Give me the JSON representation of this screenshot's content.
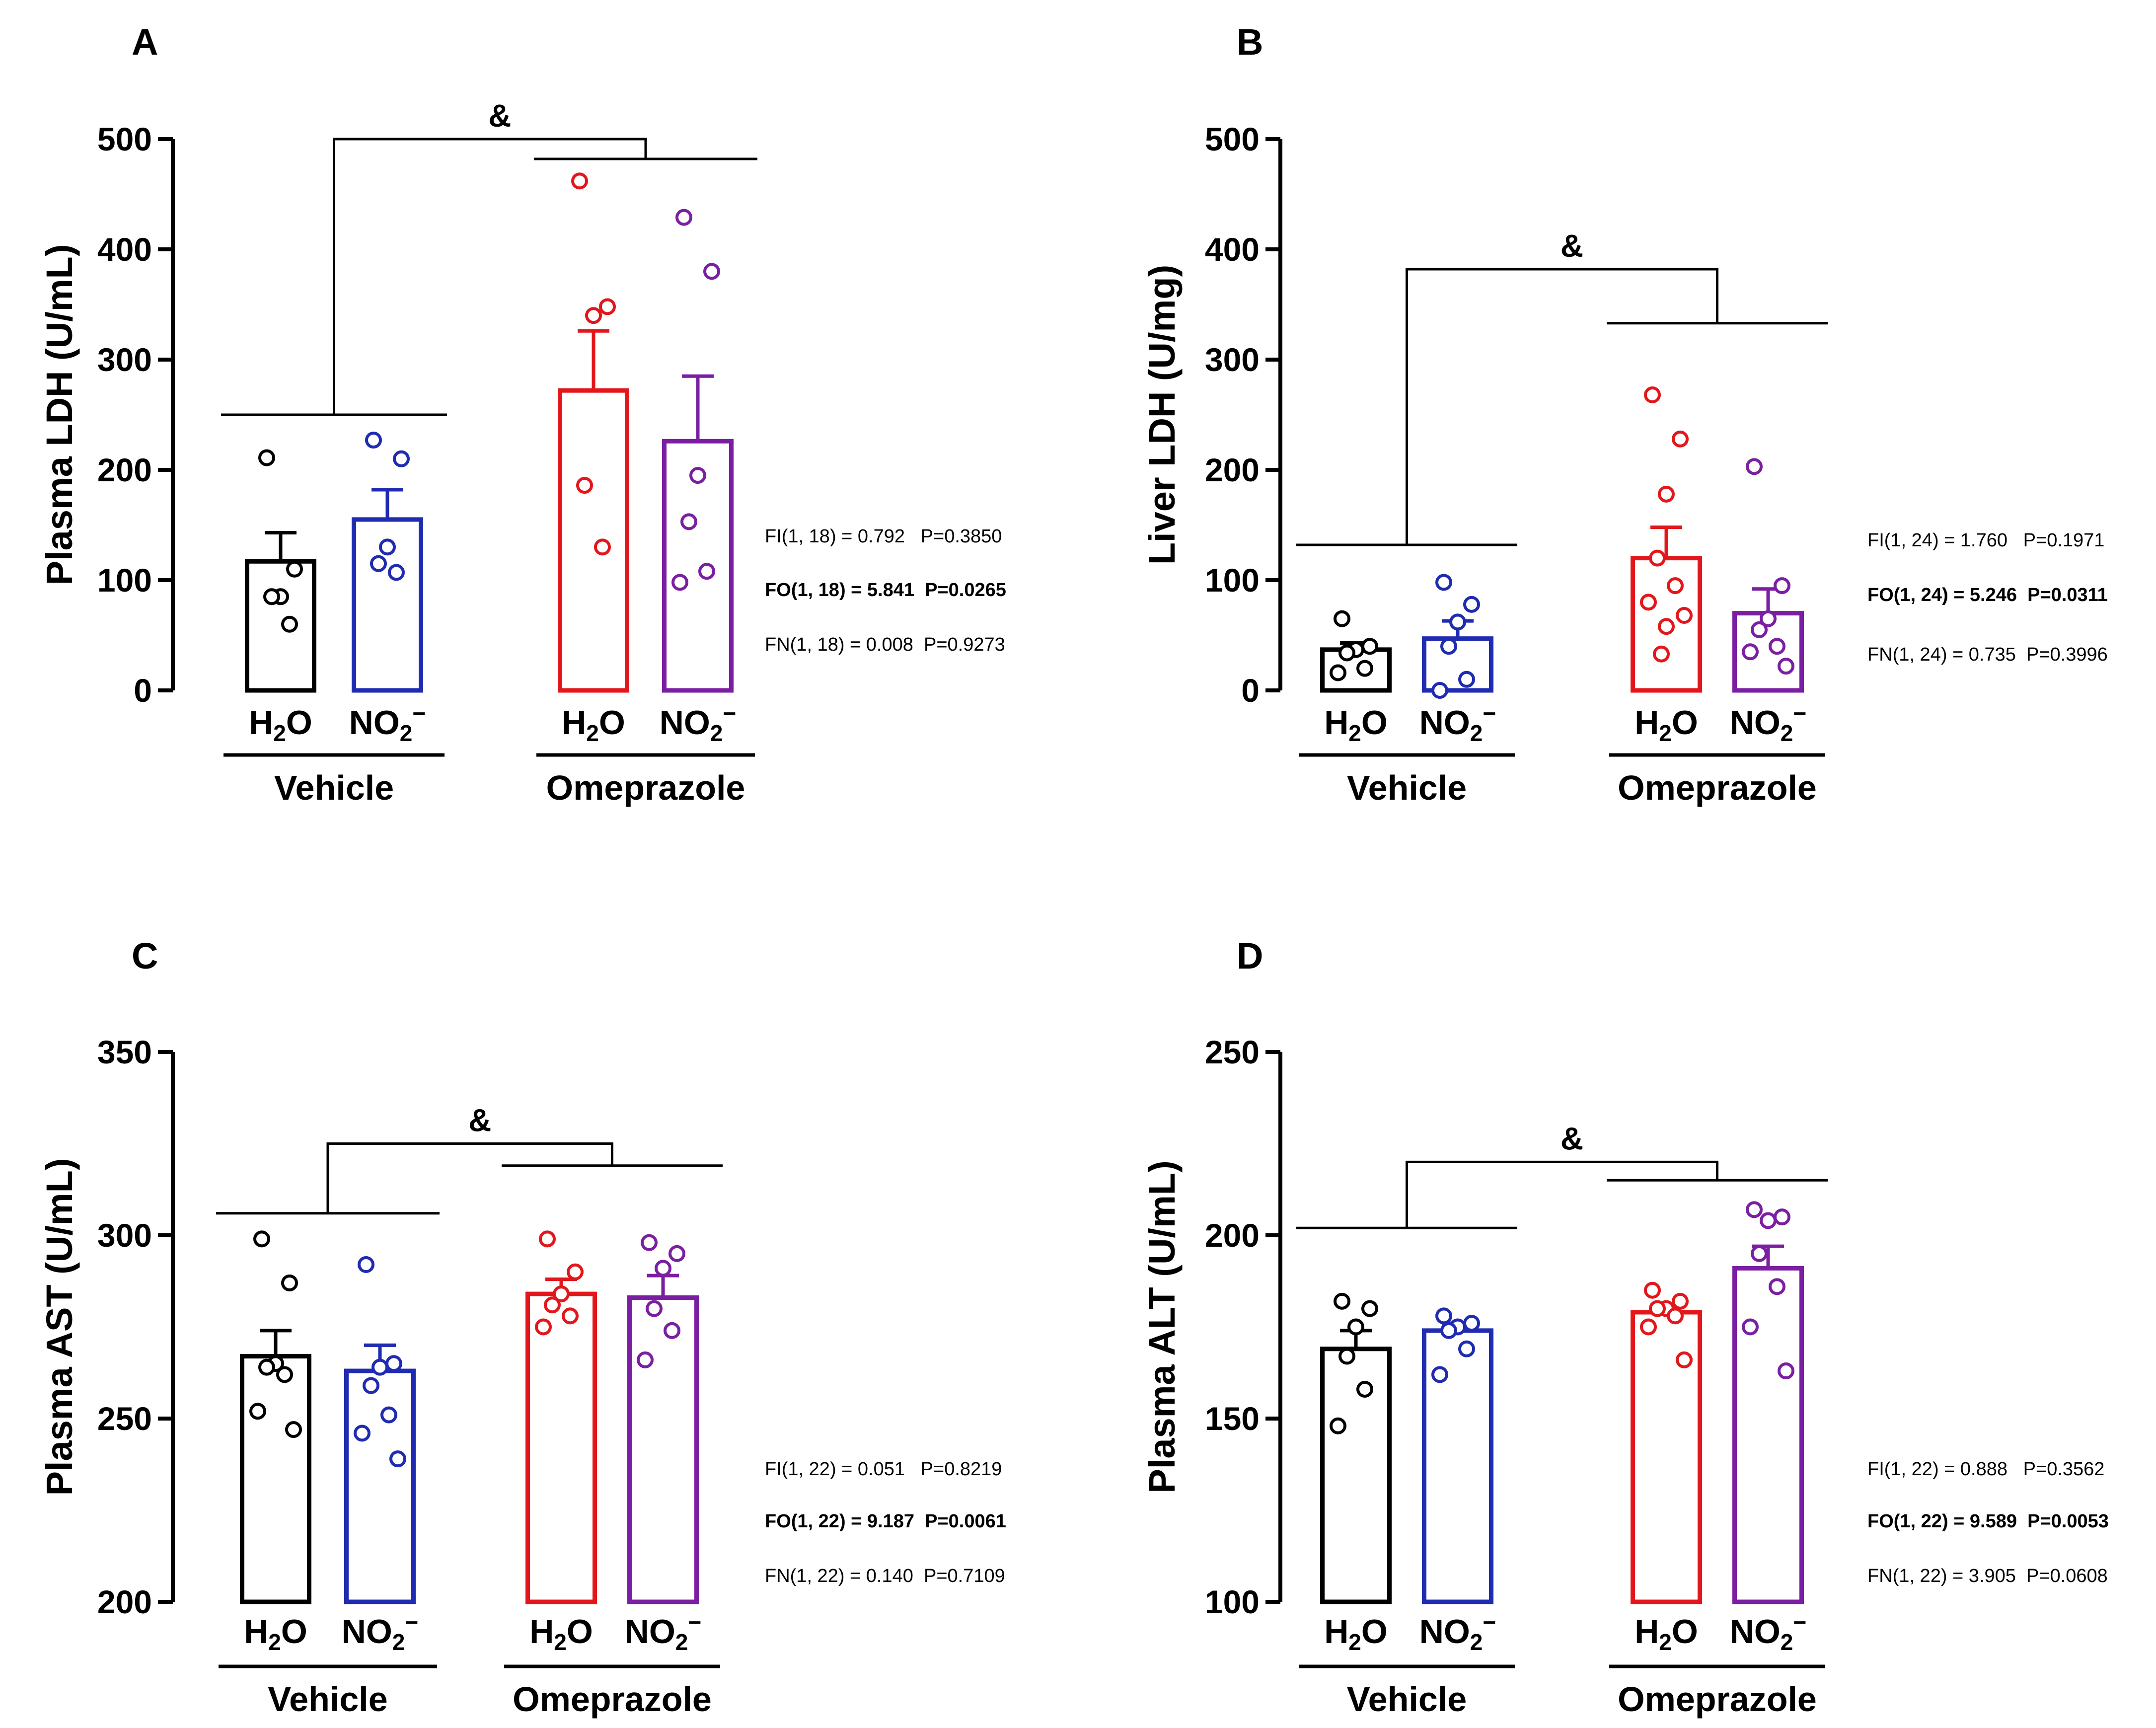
{
  "colors": {
    "h2o_vehicle": "#000000",
    "no2_vehicle": "#1f2bb0",
    "h2o_omeprazole": "#e3171b",
    "no2_omeprazole": "#7b1fa2"
  },
  "category_labels": {
    "h2o_main": "H",
    "h2o_sub": "2",
    "h2o_tail": "O",
    "no2_main": "NO",
    "no2_sub": "2",
    "no2_sup": "−"
  },
  "groups": [
    "Vehicle",
    "Omeprazole"
  ],
  "significance_symbol": "&",
  "chart_data": [
    {
      "panel": "A",
      "type": "bar",
      "ylabel": "Plasma LDH (U/mL)",
      "ylim": [
        0,
        500
      ],
      "yticks": [
        0,
        100,
        200,
        300,
        400,
        500
      ],
      "bars": [
        {
          "label": "H2O",
          "group": "Vehicle",
          "color_key": "h2o_vehicle",
          "mean": 117,
          "sem": 26,
          "points": [
            211,
            110,
            85,
            85,
            60
          ]
        },
        {
          "label": "NO2−",
          "group": "Vehicle",
          "color_key": "no2_vehicle",
          "mean": 155,
          "sem": 27,
          "points": [
            227,
            210,
            130,
            115,
            107
          ]
        },
        {
          "label": "H2O",
          "group": "Omeprazole",
          "color_key": "h2o_omeprazole",
          "mean": 272,
          "sem": 54,
          "points": [
            462,
            348,
            340,
            186,
            130
          ]
        },
        {
          "label": "NO2−",
          "group": "Omeprazole",
          "color_key": "no2_omeprazole",
          "mean": 226,
          "sem": 59,
          "points": [
            429,
            380,
            195,
            153,
            108,
            98
          ]
        }
      ],
      "bracket": {
        "low_level": 250,
        "high_level": 482,
        "top_level": 500
      },
      "stats": [
        {
          "text": "FI(1, 18) = 0.792   P=0.3850",
          "bold": false
        },
        {
          "text": "FO(1, 18) = 5.841  P=0.0265",
          "bold": true
        },
        {
          "text": "FN(1, 18) = 0.008  P=0.9273",
          "bold": false
        }
      ]
    },
    {
      "panel": "B",
      "type": "bar",
      "ylabel": "Liver LDH (U/mg)",
      "ylim": [
        0,
        500
      ],
      "yticks": [
        0,
        100,
        200,
        300,
        400,
        500
      ],
      "bars": [
        {
          "label": "H2O",
          "group": "Vehicle",
          "color_key": "h2o_vehicle",
          "mean": 37,
          "sem": 6,
          "points": [
            65,
            40,
            37,
            34,
            20,
            16
          ]
        },
        {
          "label": "NO2−",
          "group": "Vehicle",
          "color_key": "no2_vehicle",
          "mean": 47,
          "sem": 16,
          "points": [
            98,
            78,
            62,
            40,
            10,
            0
          ]
        },
        {
          "label": "H2O",
          "group": "Omeprazole",
          "color_key": "h2o_omeprazole",
          "mean": 120,
          "sem": 28,
          "points": [
            268,
            228,
            178,
            120,
            95,
            80,
            68,
            58,
            33
          ]
        },
        {
          "label": "NO2−",
          "group": "Omeprazole",
          "color_key": "no2_omeprazole",
          "mean": 70,
          "sem": 22,
          "points": [
            203,
            95,
            65,
            55,
            40,
            35,
            22
          ]
        }
      ],
      "bracket": {
        "low_level": 132,
        "high_level": 333,
        "top_level": 382
      },
      "stats": [
        {
          "text": "FI(1, 24) = 1.760   P=0.1971",
          "bold": false
        },
        {
          "text": "FO(1, 24) = 5.246  P=0.0311",
          "bold": true
        },
        {
          "text": "FN(1, 24) = 0.735  P=0.3996",
          "bold": false
        }
      ]
    },
    {
      "panel": "C",
      "type": "bar",
      "ylabel": "Plasma AST (U/mL)",
      "ylim": [
        200,
        350
      ],
      "yticks": [
        200,
        250,
        300,
        350
      ],
      "bars": [
        {
          "label": "H2O",
          "group": "Vehicle",
          "color_key": "h2o_vehicle",
          "mean": 267,
          "sem": 7,
          "points": [
            299,
            287,
            265,
            264,
            262,
            252,
            247
          ]
        },
        {
          "label": "NO2−",
          "group": "Vehicle",
          "color_key": "no2_vehicle",
          "mean": 263,
          "sem": 7,
          "points": [
            292,
            265,
            264,
            259,
            251,
            246,
            239
          ]
        },
        {
          "label": "H2O",
          "group": "Omeprazole",
          "color_key": "h2o_omeprazole",
          "mean": 284,
          "sem": 4,
          "points": [
            299,
            290,
            284,
            281,
            278,
            275
          ]
        },
        {
          "label": "NO2−",
          "group": "Omeprazole",
          "color_key": "no2_omeprazole",
          "mean": 283,
          "sem": 6,
          "points": [
            298,
            295,
            291,
            280,
            274,
            266
          ]
        }
      ],
      "bracket": {
        "low_level": 306,
        "high_level": 319,
        "top_level": 325
      },
      "stats": [
        {
          "text": "FI(1, 22) = 0.051   P=0.8219",
          "bold": false
        },
        {
          "text": "FO(1, 22) = 9.187  P=0.0061",
          "bold": true
        },
        {
          "text": "FN(1, 22) = 0.140  P=0.7109",
          "bold": false
        }
      ]
    },
    {
      "panel": "D",
      "type": "bar",
      "ylabel": "Plasma ALT (U/mL)",
      "ylim": [
        100,
        250
      ],
      "yticks": [
        100,
        150,
        200,
        250
      ],
      "bars": [
        {
          "label": "H2O",
          "group": "Vehicle",
          "color_key": "h2o_vehicle",
          "mean": 169,
          "sem": 5,
          "points": [
            182,
            180,
            175,
            167,
            158,
            148
          ]
        },
        {
          "label": "NO2−",
          "group": "Vehicle",
          "color_key": "no2_vehicle",
          "mean": 174,
          "sem": 2,
          "points": [
            178,
            176,
            175,
            174,
            169,
            162
          ]
        },
        {
          "label": "H2O",
          "group": "Omeprazole",
          "color_key": "h2o_omeprazole",
          "mean": 179,
          "sem": 2,
          "points": [
            185,
            182,
            180,
            180,
            178,
            175,
            166
          ]
        },
        {
          "label": "NO2−",
          "group": "Omeprazole",
          "color_key": "no2_omeprazole",
          "mean": 191,
          "sem": 6,
          "points": [
            207,
            205,
            204,
            195,
            186,
            175,
            163
          ]
        }
      ],
      "bracket": {
        "low_level": 202,
        "high_level": 215,
        "top_level": 220
      },
      "stats": [
        {
          "text": "FI(1, 22) = 0.888   P=0.3562",
          "bold": false
        },
        {
          "text": "FO(1, 22) = 9.589  P=0.0053",
          "bold": true
        },
        {
          "text": "FN(1, 22) = 3.905  P=0.0608",
          "bold": false
        }
      ]
    }
  ]
}
